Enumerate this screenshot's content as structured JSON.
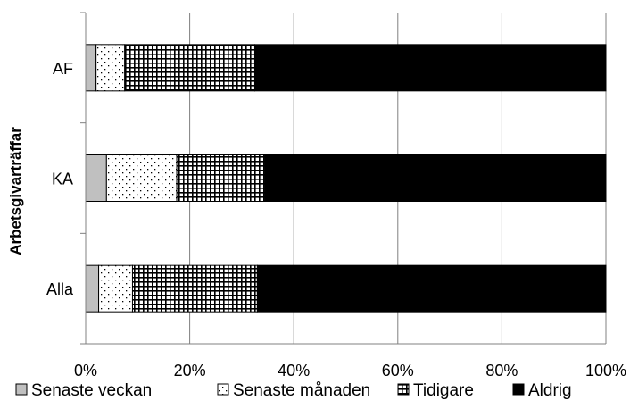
{
  "chart_data": {
    "type": "bar",
    "orientation": "horizontal",
    "stacked": true,
    "percent": true,
    "ylabel": "Arbetsgivarträffar",
    "xlabel": "",
    "categories": [
      "AF",
      "KA",
      "Alla"
    ],
    "xlim": [
      0,
      100
    ],
    "xticks": [
      "0%",
      "20%",
      "40%",
      "60%",
      "80%",
      "100%"
    ],
    "grid": "vertical",
    "legend_position": "bottom",
    "series": [
      {
        "name": "Senaste veckan",
        "pattern": "gray",
        "color": "#c0c0c0",
        "values": [
          2,
          4,
          2.5
        ]
      },
      {
        "name": "Senaste månaden",
        "pattern": "dots",
        "color": "#ffffff",
        "values": [
          5.5,
          13.5,
          6.5
        ]
      },
      {
        "name": "Tidigare",
        "pattern": "grid",
        "color": "#000000",
        "values": [
          25,
          17,
          24
        ]
      },
      {
        "name": "Aldrig",
        "pattern": "solid",
        "color": "#000000",
        "values": [
          67.5,
          65.5,
          67
        ]
      }
    ]
  }
}
